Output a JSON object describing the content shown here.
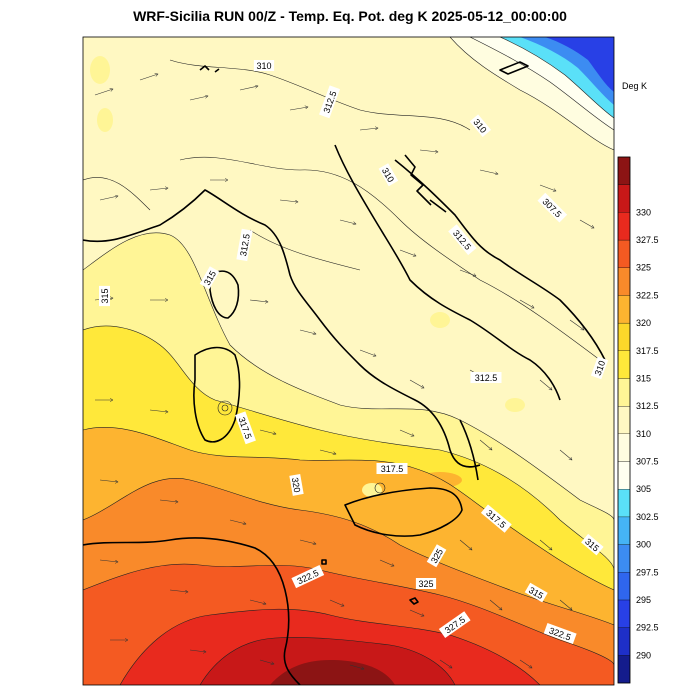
{
  "title": "WRF-Sicilia RUN 00/Z - Temp. Eq. Pot. deg K 2025-05-12_00:00:00",
  "colorbar": {
    "units": "Deg K",
    "levels": [
      "290",
      "292.5",
      "295",
      "297.5",
      "300",
      "302.5",
      "305",
      "307.5",
      "310",
      "312.5",
      "315",
      "317.5",
      "320",
      "322.5",
      "325",
      "327.5",
      "330"
    ],
    "colors": [
      "#141c8c",
      "#1e2fc8",
      "#2840e6",
      "#2f66ee",
      "#3c8cf2",
      "#45b4f5",
      "#5ae0f8",
      "#fffff0",
      "#fffde0",
      "#fff8c2",
      "#fff596",
      "#ffe83a",
      "#fcd82a",
      "#fdb430",
      "#f98a2a",
      "#f45a22",
      "#e82a1e",
      "#c81818",
      "#8c1414"
    ]
  },
  "contour_labels": [
    "310",
    "312.5",
    "310",
    "310",
    "307.5",
    "312.5",
    "312.5",
    "315",
    "315",
    "312.5",
    "310",
    "317.5",
    "317.5",
    "320",
    "317.5",
    "315",
    "322.5",
    "325",
    "315",
    "327.5",
    "322.5",
    "325"
  ]
}
